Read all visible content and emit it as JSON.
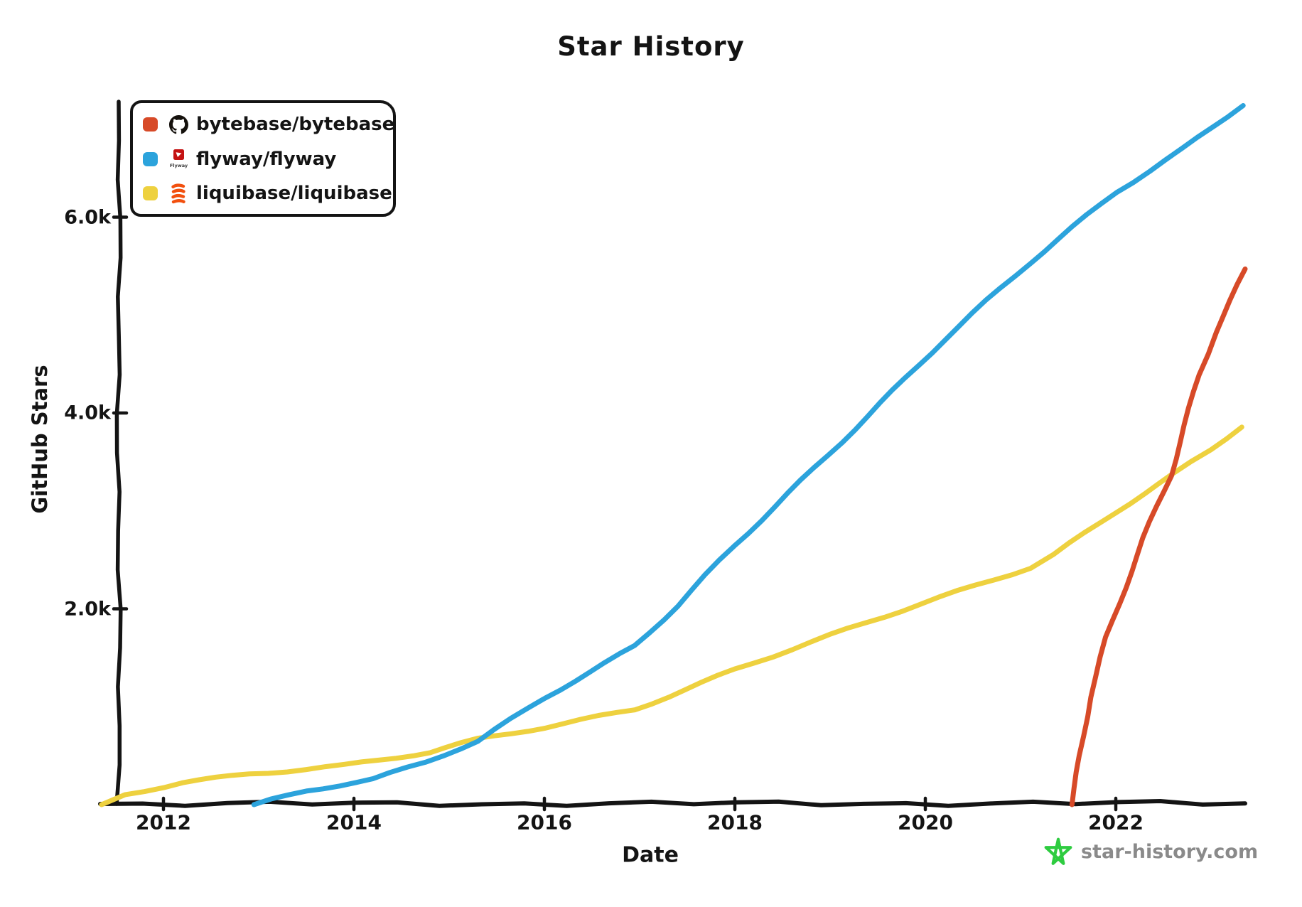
{
  "title": "Star History",
  "legend": {
    "items": [
      {
        "label": "bytebase/bytebase",
        "icon": "github-octocat-icon",
        "swatch_color": "#d74a28"
      },
      {
        "label": "flyway/flyway",
        "icon": "flyway-logo-icon",
        "icon_text": "Flyway",
        "swatch_color": "#2ca3dc"
      },
      {
        "label": "liquibase/liquibase",
        "icon": "liquibase-logo-icon",
        "swatch_color": "#eed13f"
      }
    ]
  },
  "watermark": {
    "text": "star-history.com",
    "star_color": "#2ecc40",
    "text_color": "#8a8a8a"
  },
  "colors": {
    "axis": "#141414",
    "bytebase_line": "#d74a28",
    "flyway_line": "#2ca3dc",
    "liquibase_line": "#eed13f",
    "flyway_logo_red": "#c41212",
    "liquibase_logo_orange": "#f2500f",
    "octocat_black": "#15110d"
  },
  "chart_data": {
    "type": "line",
    "title": "Star History",
    "xlabel": "Date",
    "ylabel": "GitHub Stars",
    "grid": false,
    "legend_position": "top-left",
    "xlim": [
      2011.3,
      2023.45
    ],
    "ylim": [
      0,
      7300
    ],
    "x_ticks": [
      {
        "value": 2012,
        "label": "2012"
      },
      {
        "value": 2014,
        "label": "2014"
      },
      {
        "value": 2016,
        "label": "2016"
      },
      {
        "value": 2018,
        "label": "2018"
      },
      {
        "value": 2020,
        "label": "2020"
      },
      {
        "value": 2022,
        "label": "2022"
      }
    ],
    "y_ticks": [
      {
        "value": 2000,
        "label": "2.0k"
      },
      {
        "value": 4000,
        "label": "4.0k"
      },
      {
        "value": 6000,
        "label": "6.0k"
      }
    ],
    "series": [
      {
        "name": "bytebase/bytebase",
        "color": "#d74a28",
        "points": [
          [
            2021.54,
            0
          ],
          [
            2021.62,
            500
          ],
          [
            2021.72,
            1100
          ],
          [
            2021.9,
            1710
          ],
          [
            2022.1,
            2220
          ],
          [
            2022.3,
            2720
          ],
          [
            2022.58,
            3360
          ],
          [
            2022.87,
            4390
          ],
          [
            2023.04,
            4830
          ],
          [
            2023.2,
            5150
          ],
          [
            2023.36,
            5470
          ]
        ]
      },
      {
        "name": "flyway/flyway",
        "color": "#2ca3dc",
        "points": [
          [
            2012.95,
            0
          ],
          [
            2013.5,
            140
          ],
          [
            2014.2,
            250
          ],
          [
            2014.75,
            430
          ],
          [
            2015.3,
            650
          ],
          [
            2016.0,
            1100
          ],
          [
            2016.95,
            1620
          ],
          [
            2017.4,
            2030
          ],
          [
            2018.0,
            2640
          ],
          [
            2019.25,
            3840
          ],
          [
            2020.2,
            4750
          ],
          [
            2021.1,
            5530
          ],
          [
            2022.0,
            6260
          ],
          [
            2022.7,
            6700
          ],
          [
            2023.33,
            7150
          ]
        ]
      },
      {
        "name": "liquibase/liquibase",
        "color": "#eed13f",
        "points": [
          [
            2011.35,
            0
          ],
          [
            2011.6,
            100
          ],
          [
            2012.2,
            230
          ],
          [
            2012.9,
            320
          ],
          [
            2013.9,
            400
          ],
          [
            2014.8,
            530
          ],
          [
            2015.3,
            660
          ],
          [
            2016.0,
            790
          ],
          [
            2016.95,
            980
          ],
          [
            2018.0,
            1380
          ],
          [
            2019.0,
            1720
          ],
          [
            2019.95,
            2050
          ],
          [
            2021.1,
            2430
          ],
          [
            2021.35,
            2560
          ],
          [
            2022.0,
            2990
          ],
          [
            2022.6,
            3360
          ],
          [
            2023.0,
            3620
          ],
          [
            2023.32,
            3860
          ]
        ]
      }
    ]
  }
}
